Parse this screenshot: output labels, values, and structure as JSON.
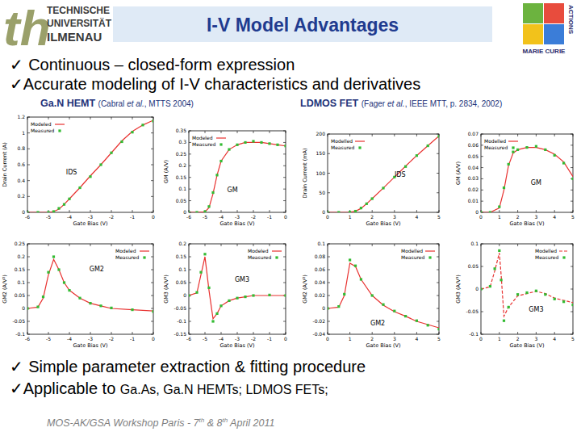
{
  "slide": {
    "title": "I-V Model Advantages",
    "logo_mark": "th",
    "logo_left": [
      "TECHNISCHE",
      "UNIVERSITÄT",
      "ILMENAU"
    ],
    "logo_right": [
      "MARIE CURIE",
      "ACTIONS"
    ],
    "check": "✓",
    "bullets_top": [
      "Continuous – closed-form expression",
      "Accurate modeling of I-V characteristics and derivatives"
    ],
    "groups": [
      {
        "name": "Ga.N HEMT",
        "ref": [
          "(Cabral ",
          "et al.",
          ", MTTS 2004)"
        ]
      },
      {
        "name": "LDMOS FET",
        "ref": [
          "(Fager ",
          "et al.",
          ", IEEE MTT, p. 2834, 2002)"
        ]
      }
    ],
    "bullets_bottom": [
      {
        "text": "Simple parameter extraction & fitting procedure"
      },
      {
        "text": "Applicable to ",
        "small": "Ga.As, Ga.N HEMTs; LDMOS FETs;"
      }
    ],
    "footer": [
      {
        "text": "MOS-AK/GSA Workshop Paris - 7"
      },
      {
        "text": "th",
        "sup": true
      },
      {
        "text": " & 8"
      },
      {
        "text": "th",
        "sup": true
      },
      {
        "text": " April 2011"
      }
    ]
  },
  "chart_data": [
    {
      "type": "line",
      "annotation": "IDS",
      "x_label": "Gate Bias (V)",
      "y_label": "Drain Current (A)",
      "x": [
        -6,
        -5.5,
        -5,
        -4.75,
        -4.5,
        -4.25,
        -4,
        -3.5,
        -3,
        -2.5,
        -2,
        -1.5,
        -1,
        -0.5,
        0
      ],
      "xlim": [
        -6,
        0
      ],
      "xticks": [
        -6,
        -5,
        -4,
        -3,
        -2,
        -1,
        0
      ],
      "ylim": [
        0,
        1.2
      ],
      "yticks": [
        0,
        0.2,
        0.4,
        0.6,
        0.8,
        1,
        1.2
      ],
      "grid": false,
      "legend": "upper left",
      "series": [
        {
          "name": "Modeled",
          "type": "line",
          "color": "#e8312f",
          "line_style": "solid",
          "values": [
            0,
            0,
            0,
            0.01,
            0.04,
            0.1,
            0.17,
            0.31,
            0.46,
            0.6,
            0.75,
            0.9,
            1.02,
            1.1,
            1.16
          ]
        },
        {
          "name": "Measured",
          "type": "scatter",
          "color": "#33bb33",
          "marker": "square",
          "values": [
            0,
            0,
            0,
            0.01,
            0.05,
            0.1,
            0.17,
            0.31,
            0.45,
            0.6,
            0.75,
            0.89,
            1.01,
            1.1,
            1.15
          ]
        }
      ]
    },
    {
      "type": "line",
      "annotation": "GM",
      "x_label": "Gate Bias (V)",
      "y_label": "GM (A/V)",
      "x": [
        -6,
        -5.5,
        -5,
        -4.75,
        -4.5,
        -4.25,
        -4,
        -3.5,
        -3,
        -2.5,
        -2,
        -1.5,
        -1,
        -0.5,
        0
      ],
      "xlim": [
        -6,
        0
      ],
      "xticks": [
        -6,
        -5,
        -4,
        -3,
        -2,
        -1,
        0
      ],
      "ylim": [
        0,
        0.35
      ],
      "yticks": [
        0,
        0.05,
        0.1,
        0.15,
        0.2,
        0.25,
        0.3,
        0.35
      ],
      "grid": false,
      "legend": "upper left",
      "series": [
        {
          "name": "Modeled",
          "type": "line",
          "color": "#e8312f",
          "line_style": "solid",
          "values": [
            0,
            0,
            0.002,
            0.02,
            0.08,
            0.16,
            0.22,
            0.27,
            0.29,
            0.3,
            0.3,
            0.3,
            0.295,
            0.29,
            0.285
          ]
        },
        {
          "name": "Measured",
          "type": "scatter",
          "color": "#33bb33",
          "marker": "square",
          "values": [
            0,
            0,
            0.003,
            0.025,
            0.085,
            0.16,
            0.22,
            0.27,
            0.29,
            0.3,
            0.305,
            0.3,
            0.295,
            0.29,
            0.285
          ]
        }
      ]
    },
    {
      "type": "line",
      "annotation": "GM2",
      "x_label": "Gate Bias (V)",
      "y_label": "GM2 (A/V²)",
      "x": [
        -6,
        -5.5,
        -5.25,
        -5,
        -4.75,
        -4.5,
        -4.25,
        -4,
        -3.5,
        -3,
        -2.5,
        -2,
        -1,
        0
      ],
      "xlim": [
        -6,
        0
      ],
      "xticks": [
        -6,
        -5,
        -4,
        -3,
        -2,
        -1,
        0
      ],
      "ylim": [
        -0.1,
        0.25
      ],
      "yticks": [
        -0.1,
        -0.05,
        0,
        0.05,
        0.1,
        0.15,
        0.2,
        0.25
      ],
      "grid": false,
      "legend": "upper right",
      "series": [
        {
          "name": "Modeled",
          "type": "line",
          "color": "#e8312f",
          "line_style": "solid",
          "values": [
            0,
            0.005,
            0.04,
            0.13,
            0.19,
            0.15,
            0.1,
            0.07,
            0.04,
            0.02,
            0.01,
            0,
            -0.005,
            -0.01
          ]
        },
        {
          "name": "Measured",
          "type": "scatter",
          "color": "#33bb33",
          "marker": "square",
          "values": [
            0,
            0.006,
            0.045,
            0.14,
            0.2,
            0.15,
            0.1,
            0.07,
            0.04,
            0.02,
            0.01,
            0.002,
            -0.005,
            -0.012
          ]
        }
      ]
    },
    {
      "type": "line",
      "annotation": "GM3",
      "x_label": "Gate Bias (V)",
      "y_label": "GM3 (A/V³)",
      "x": [
        -6,
        -5.5,
        -5.25,
        -5,
        -4.75,
        -4.5,
        -4.25,
        -4,
        -3.5,
        -3,
        -2.5,
        -2,
        -1,
        0
      ],
      "xlim": [
        -6,
        0
      ],
      "xticks": [
        -6,
        -5,
        -4,
        -3,
        -2,
        -1,
        0
      ],
      "ylim": [
        -0.15,
        0.2
      ],
      "yticks": [
        -0.15,
        -0.1,
        -0.05,
        0,
        0.05,
        0.1,
        0.15,
        0.2
      ],
      "grid": false,
      "legend": "upper right",
      "series": [
        {
          "name": "Modeled",
          "type": "line",
          "color": "#e8312f",
          "line_style": "solid",
          "values": [
            0,
            0.01,
            0.08,
            0.15,
            0.02,
            -0.09,
            -0.07,
            -0.04,
            -0.02,
            -0.01,
            -0.005,
            0,
            0,
            0
          ]
        },
        {
          "name": "Measured",
          "type": "scatter",
          "color": "#33bb33",
          "marker": "square",
          "values": [
            0,
            0.012,
            0.09,
            0.16,
            0.03,
            -0.1,
            -0.07,
            -0.04,
            -0.02,
            -0.01,
            -0.005,
            0,
            0.002,
            0
          ]
        }
      ]
    },
    {
      "type": "line",
      "annotation": "IDS",
      "x_label": "Gate Bias (V)",
      "y_label": "Drain Current (mA)",
      "x": [
        0,
        0.5,
        1,
        1.25,
        1.5,
        1.75,
        2,
        2.5,
        3,
        3.5,
        4,
        4.5,
        5
      ],
      "xlim": [
        0,
        5
      ],
      "xticks": [
        0,
        1,
        2,
        3,
        4,
        5
      ],
      "ylim": [
        0,
        200
      ],
      "yticks": [
        0,
        50,
        100,
        150,
        200
      ],
      "grid": false,
      "legend": "upper left",
      "series": [
        {
          "name": "Modelled",
          "type": "line",
          "color": "#e8312f",
          "line_style": "solid",
          "values": [
            0,
            0,
            0.5,
            3,
            10,
            22,
            35,
            62,
            90,
            118,
            145,
            170,
            195
          ]
        },
        {
          "name": "Measured",
          "type": "scatter",
          "color": "#33bb33",
          "marker": "square",
          "values": [
            0,
            0,
            0.6,
            3,
            11,
            22,
            35,
            62,
            90,
            117,
            145,
            170,
            194
          ]
        }
      ]
    },
    {
      "type": "line",
      "annotation": "GM",
      "x_label": "Gate Bias (V)",
      "y_label": "GM (A/V)",
      "x": [
        0,
        0.5,
        1,
        1.25,
        1.5,
        1.75,
        2,
        2.5,
        3,
        3.5,
        4,
        4.5,
        5
      ],
      "xlim": [
        0,
        5
      ],
      "xticks": [
        0,
        1,
        2,
        3,
        4,
        5
      ],
      "ylim": [
        0,
        0.07
      ],
      "yticks": [
        0,
        0.01,
        0.02,
        0.03,
        0.04,
        0.05,
        0.06,
        0.07
      ],
      "grid": false,
      "legend": "upper left",
      "series": [
        {
          "name": "Modelled",
          "type": "line",
          "color": "#e8312f",
          "line_style": "solid",
          "values": [
            0,
            0,
            0.004,
            0.02,
            0.042,
            0.053,
            0.056,
            0.058,
            0.058,
            0.056,
            0.052,
            0.045,
            0.032
          ]
        },
        {
          "name": "Measured",
          "type": "scatter",
          "color": "#33bb33",
          "marker": "square",
          "values": [
            0,
            0,
            0.005,
            0.022,
            0.043,
            0.054,
            0.056,
            0.058,
            0.059,
            0.056,
            0.051,
            0.044,
            0.03
          ]
        }
      ]
    },
    {
      "type": "line",
      "annotation": "GM2",
      "x_label": "Gate Bias (V)",
      "y_label": "GM2 (A/V²)",
      "x": [
        0,
        0.5,
        0.75,
        1,
        1.25,
        1.5,
        2,
        2.5,
        3,
        3.5,
        4,
        4.5,
        5
      ],
      "xlim": [
        0,
        5
      ],
      "xticks": [
        0,
        1,
        2,
        3,
        4,
        5
      ],
      "ylim": [
        -0.04,
        0.1
      ],
      "yticks": [
        -0.04,
        -0.02,
        0,
        0.02,
        0.04,
        0.06,
        0.08,
        0.1
      ],
      "grid": false,
      "legend": "upper right",
      "series": [
        {
          "name": "Modelled",
          "type": "line",
          "color": "#e8312f",
          "line_style": "solid",
          "values": [
            0,
            0.002,
            0.02,
            0.07,
            0.065,
            0.045,
            0.02,
            0.005,
            -0.005,
            -0.012,
            -0.02,
            -0.025,
            -0.03
          ]
        },
        {
          "name": "Measured",
          "type": "scatter",
          "color": "#33bb33",
          "marker": "square",
          "values": [
            0,
            0.003,
            0.022,
            0.075,
            0.066,
            0.045,
            0.02,
            0.006,
            -0.004,
            -0.012,
            -0.019,
            -0.026,
            -0.032
          ]
        }
      ]
    },
    {
      "type": "line",
      "annotation": "GM3",
      "x_label": "Gate Bias (V)",
      "y_label": "GM3 (A/V³)",
      "x": [
        0,
        0.5,
        0.75,
        1,
        1.1,
        1.25,
        1.5,
        2,
        2.5,
        3,
        3.5,
        4,
        4.5,
        5
      ],
      "xlim": [
        0,
        5
      ],
      "xticks": [
        0,
        1,
        2,
        3,
        4,
        5
      ],
      "ylim": [
        -0.1,
        0.1
      ],
      "yticks": [
        -0.1,
        -0.05,
        0,
        0.05,
        0.1
      ],
      "grid": false,
      "legend": "upper right",
      "series": [
        {
          "name": "Modelled",
          "type": "line",
          "color": "#e8312f",
          "line_style": "dashed",
          "values": [
            0,
            0.005,
            0.04,
            0.08,
            0.03,
            -0.06,
            -0.04,
            -0.015,
            -0.01,
            -0.005,
            -0.01,
            -0.02,
            -0.025,
            -0.03
          ]
        },
        {
          "name": "Measured",
          "type": "scatter",
          "color": "#33bb33",
          "marker": "square",
          "values": [
            0,
            0.006,
            0.045,
            0.085,
            0.02,
            -0.07,
            -0.04,
            -0.012,
            -0.008,
            -0.004,
            -0.012,
            -0.022,
            -0.028,
            -0.035
          ]
        }
      ]
    }
  ]
}
